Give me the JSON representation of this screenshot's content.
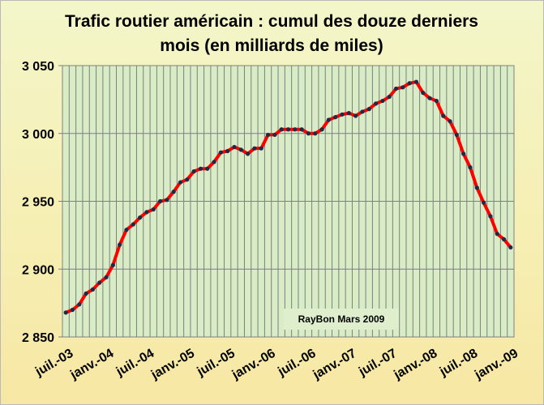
{
  "chart_data": {
    "type": "line",
    "title_lines": [
      "Trafic routier américain : cumul  des douze derniers",
      "mois  (en milliards de miles)"
    ],
    "annotation": "RayBon Mars 2009",
    "ylim": [
      2850,
      3050
    ],
    "y_ticks": [
      2850,
      2900,
      2950,
      3000,
      3050
    ],
    "y_tick_labels": [
      "2 850",
      "2 900",
      "2 950",
      "3 000",
      "3 050"
    ],
    "x_tick_labels": [
      "juil.-03",
      "janv.-04",
      "juil.-04",
      "janv.-05",
      "juil.-05",
      "janv.-06",
      "juil.-06",
      "janv.-07",
      "juil.-07",
      "janv.-08",
      "juil.-08",
      "janv.-09"
    ],
    "x_tick_index": [
      0,
      6,
      12,
      18,
      24,
      30,
      36,
      42,
      48,
      54,
      60,
      66
    ],
    "grid": true,
    "legend": "none",
    "line_color": "#ff0000",
    "marker_color": "#1f2a44",
    "plot_background": "#d8ecc6",
    "series": [
      {
        "values": [
          2868,
          2870,
          2874,
          2882,
          2885,
          2890,
          2894,
          2903,
          2918,
          2929,
          2933,
          2938,
          2942,
          2944,
          2950,
          2951,
          2957,
          2964,
          2966,
          2972,
          2974,
          2974,
          2979,
          2986,
          2987,
          2990,
          2988,
          2985,
          2989,
          2989,
          2999,
          2999,
          3003,
          3003,
          3003,
          3003,
          3000,
          3000,
          3003,
          3010,
          3012,
          3014,
          3015,
          3013,
          3016,
          3018,
          3022,
          3024,
          3027,
          3033,
          3034,
          3037,
          3038,
          3030,
          3026,
          3024,
          3013,
          3009,
          2999,
          2985,
          2975,
          2960,
          2949,
          2939,
          2926,
          2922,
          2916
        ]
      }
    ]
  }
}
